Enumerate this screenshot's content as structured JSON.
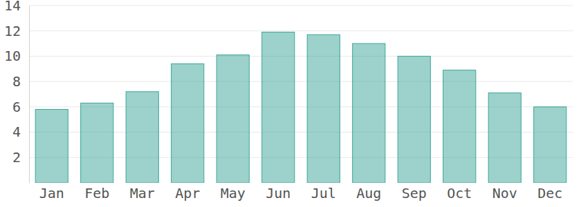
{
  "chart_data": {
    "type": "bar",
    "categories": [
      "Jan",
      "Feb",
      "Mar",
      "Apr",
      "May",
      "Jun",
      "Jul",
      "Aug",
      "Sep",
      "Oct",
      "Nov",
      "Dec"
    ],
    "values": [
      5.8,
      6.3,
      7.2,
      9.4,
      10.1,
      11.9,
      11.7,
      11.0,
      10.0,
      8.9,
      7.1,
      6.0
    ],
    "color": "#3aa597",
    "ylim": [
      0,
      14
    ],
    "yticks": [
      2,
      4,
      6,
      8,
      10,
      12,
      14
    ],
    "grid": true
  }
}
